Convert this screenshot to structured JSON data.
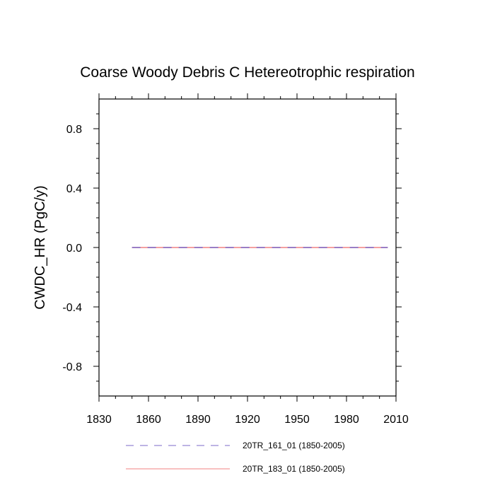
{
  "chart_data": {
    "type": "line",
    "title": "Coarse Woody Debris C Hetereotrophic respiration",
    "xlabel": "",
    "ylabel": "CWDC_HR  (PgC/y)",
    "xlim": [
      1830,
      2010
    ],
    "ylim": [
      -1.0,
      1.0
    ],
    "x_ticks": [
      1830,
      1860,
      1890,
      1920,
      1950,
      1980,
      2010
    ],
    "x_tick_labels": [
      "1830",
      "1860",
      "1890",
      "1920",
      "1950",
      "1980",
      "2010"
    ],
    "y_ticks": [
      -0.8,
      -0.4,
      0.0,
      0.4,
      0.8
    ],
    "y_tick_labels": [
      "-0.8",
      "-0.4",
      "0.0",
      "0.4",
      "0.8"
    ],
    "grid": false,
    "legend_position": "bottom",
    "series": [
      {
        "name": "20TR_161_01 (1850-2005)",
        "color": "#7b68c8",
        "style": "dashed",
        "x": [
          1850,
          2005
        ],
        "y": [
          0.0,
          0.0
        ]
      },
      {
        "name": "20TR_183_01 (1850-2005)",
        "color": "#f08080",
        "style": "solid",
        "x": [
          1850,
          2005
        ],
        "y": [
          0.0,
          0.0
        ]
      }
    ]
  }
}
